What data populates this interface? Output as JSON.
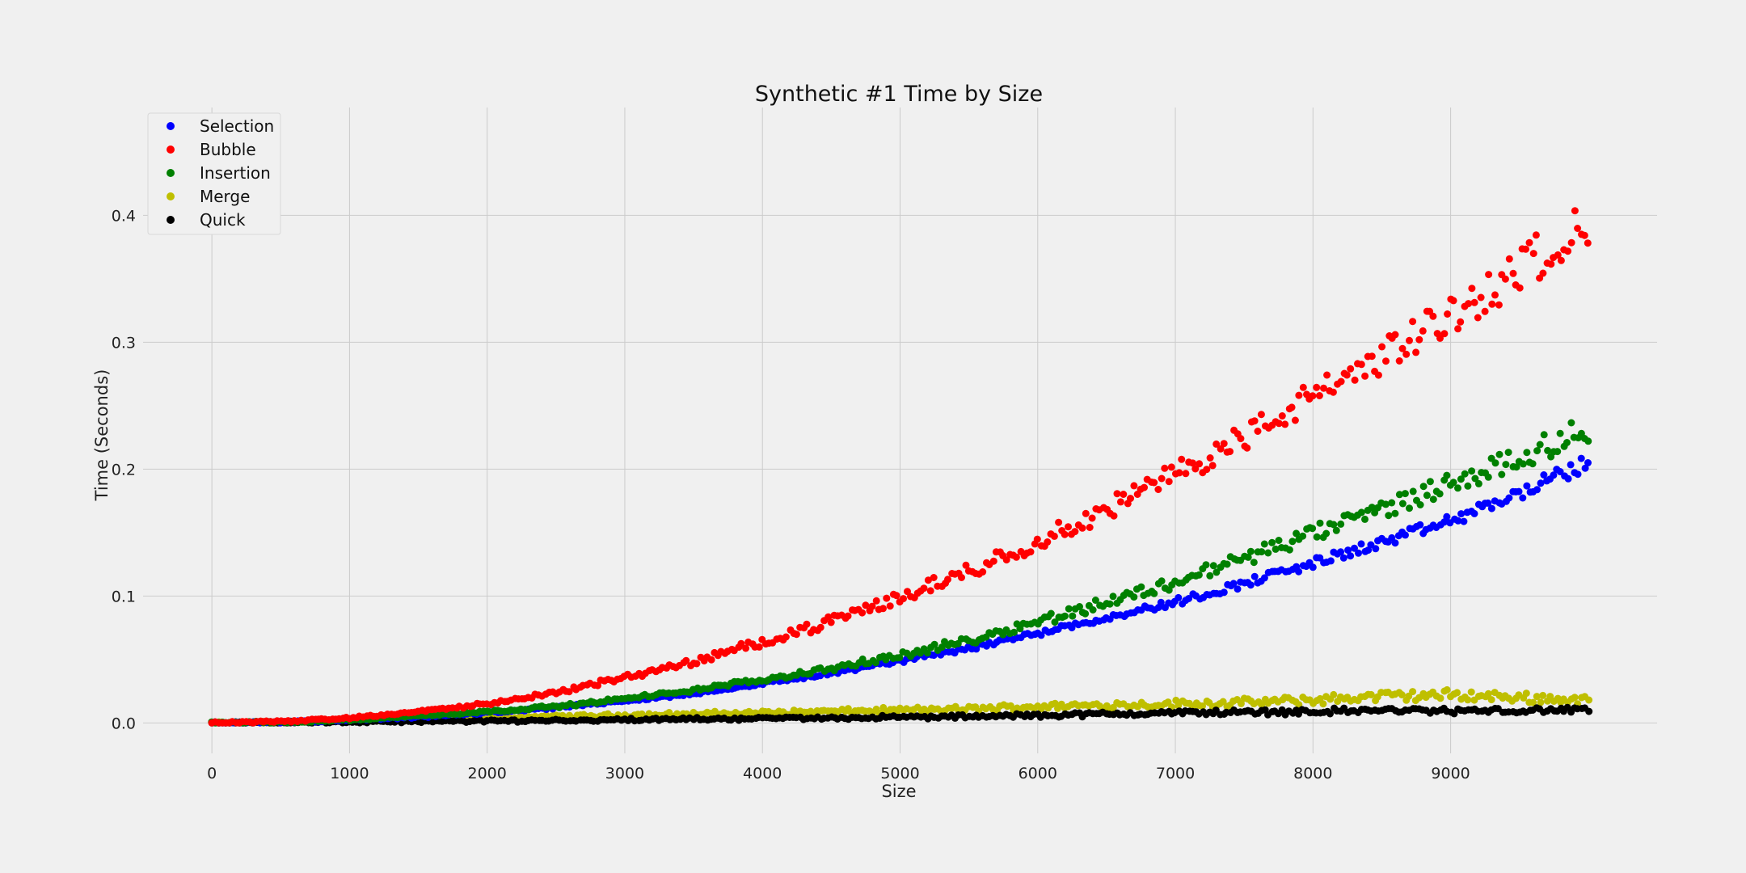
{
  "chart_data": {
    "type": "scatter",
    "title": "Synthetic #1 Time by Size",
    "xlabel": "Size",
    "ylabel": "Time (Seconds)",
    "xlim": [
      -500,
      10500
    ],
    "ylim": [
      -0.024,
      0.485
    ],
    "xticks": [
      0,
      1000,
      2000,
      3000,
      4000,
      5000,
      6000,
      7000,
      8000,
      9000
    ],
    "xtick_labels": [
      "0",
      "1000",
      "2000",
      "3000",
      "4000",
      "5000",
      "6000",
      "7000",
      "8000",
      "9000"
    ],
    "yticks": [
      0.0,
      0.1,
      0.2,
      0.3,
      0.4
    ],
    "ytick_labels": [
      "0.0",
      "0.1",
      "0.2",
      "0.3",
      "0.4"
    ],
    "grid": true,
    "legend_position": "top-left",
    "sample_step": 100,
    "x_max": 10000,
    "series": [
      {
        "name": "Selection",
        "color": "#0000ff",
        "x": [
          0,
          500,
          1000,
          1500,
          2000,
          2500,
          3000,
          3500,
          4000,
          4500,
          5000,
          5500,
          6000,
          6500,
          7000,
          7500,
          8000,
          8500,
          9000,
          9500,
          10000
        ],
        "values": [
          0.0,
          0.0005,
          0.002,
          0.0045,
          0.008,
          0.012,
          0.017,
          0.023,
          0.031,
          0.039,
          0.049,
          0.059,
          0.071,
          0.083,
          0.095,
          0.11,
          0.126,
          0.142,
          0.159,
          0.181,
          0.205
        ]
      },
      {
        "name": "Bubble",
        "color": "#ff0000",
        "x": [
          0,
          500,
          1000,
          1500,
          2000,
          2500,
          3000,
          3500,
          4000,
          4500,
          5000,
          5500,
          6000,
          6500,
          7000,
          7500,
          8000,
          8500,
          9000,
          9500,
          10000
        ],
        "values": [
          0.0,
          0.001,
          0.004,
          0.009,
          0.015,
          0.024,
          0.036,
          0.048,
          0.064,
          0.08,
          0.099,
          0.12,
          0.143,
          0.168,
          0.196,
          0.225,
          0.257,
          0.289,
          0.321,
          0.357,
          0.397
        ]
      },
      {
        "name": "Insertion",
        "color": "#008000",
        "x": [
          0,
          500,
          1000,
          1500,
          2000,
          2500,
          3000,
          3500,
          4000,
          4500,
          5000,
          5500,
          6000,
          6500,
          7000,
          7500,
          8000,
          8500,
          9000,
          9500,
          10000
        ],
        "values": [
          0.0,
          0.0007,
          0.0025,
          0.0055,
          0.009,
          0.013,
          0.019,
          0.026,
          0.034,
          0.043,
          0.053,
          0.065,
          0.08,
          0.095,
          0.111,
          0.13,
          0.149,
          0.168,
          0.189,
          0.209,
          0.232
        ]
      },
      {
        "name": "Merge",
        "color": "#bfbf00",
        "x": [
          0,
          500,
          1000,
          1500,
          2000,
          2500,
          3000,
          3500,
          4000,
          4500,
          5000,
          5500,
          6000,
          6500,
          7000,
          7500,
          8000,
          8500,
          9000,
          9500,
          10000
        ],
        "values": [
          0.0,
          0.001,
          0.002,
          0.003,
          0.004,
          0.005,
          0.006,
          0.007,
          0.008,
          0.009,
          0.01,
          0.011,
          0.013,
          0.014,
          0.015,
          0.016,
          0.018,
          0.021,
          0.022,
          0.02,
          0.018
        ]
      },
      {
        "name": "Quick",
        "color": "#000000",
        "x": [
          0,
          500,
          1000,
          1500,
          2000,
          2500,
          3000,
          3500,
          4000,
          4500,
          5000,
          5500,
          6000,
          6500,
          7000,
          7500,
          8000,
          8500,
          9000,
          9500,
          10000
        ],
        "values": [
          0.0,
          0.0003,
          0.0007,
          0.0011,
          0.0015,
          0.002,
          0.0025,
          0.003,
          0.0035,
          0.004,
          0.0045,
          0.005,
          0.006,
          0.007,
          0.008,
          0.0085,
          0.009,
          0.01,
          0.0095,
          0.0095,
          0.0105
        ]
      }
    ]
  }
}
